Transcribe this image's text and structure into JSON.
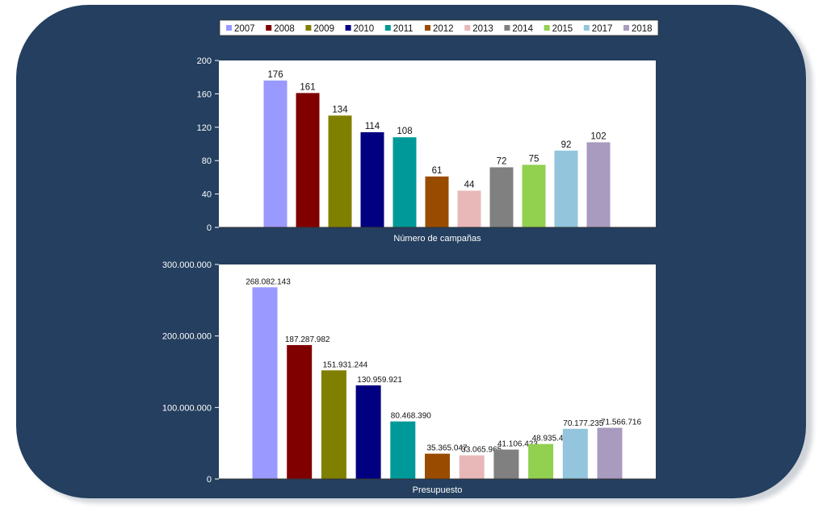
{
  "chart_data": [
    {
      "type": "bar",
      "title": "",
      "xlabel": "Número de campañas",
      "ylabel": "",
      "ylim": [
        0,
        200
      ],
      "yticks": [
        "0",
        "40",
        "80",
        "120",
        "160",
        "200"
      ],
      "grid": false,
      "legend": "top",
      "categories": [
        "2007",
        "2008",
        "2009",
        "2010",
        "2011",
        "2012",
        "2013",
        "2014",
        "2015",
        "2017",
        "2018"
      ],
      "values": [
        176,
        161,
        134,
        114,
        108,
        61,
        44,
        72,
        75,
        92,
        102
      ],
      "labels": [
        "176",
        "161",
        "134",
        "114",
        "108",
        "61",
        "44",
        "72",
        "75",
        "92",
        "102"
      ]
    },
    {
      "type": "bar",
      "title": "",
      "xlabel": "Presupuesto",
      "ylabel": "",
      "ylim": [
        0,
        300000000
      ],
      "yticks": [
        "0",
        "100.000.000",
        "200.000.000",
        "300.000.000"
      ],
      "grid": false,
      "legend": "top",
      "categories": [
        "2007",
        "2008",
        "2009",
        "2010",
        "2011",
        "2012",
        "2013",
        "2014",
        "2015",
        "2017",
        "2018"
      ],
      "values": [
        268082143,
        187287982,
        151931244,
        130959921,
        80468390,
        35365047,
        33065965,
        41106423,
        48935480,
        70177235,
        71566716
      ],
      "labels": [
        "268.082.143",
        "187.287.982",
        "151.931.244",
        "130.959.921",
        "80.468.390",
        "35.365.047",
        "33.065.965",
        "41.106.423",
        "48.935.480",
        "70.177.235",
        "71.566.716"
      ]
    }
  ],
  "legend": {
    "items": [
      "2007",
      "2008",
      "2009",
      "2010",
      "2011",
      "2012",
      "2013",
      "2014",
      "2015",
      "2017",
      "2018"
    ]
  },
  "colors": {
    "background_card": "#243f5f",
    "plot_background": "#ffffff",
    "series": [
      "#9999ff",
      "#800000",
      "#808000",
      "#000080",
      "#009999",
      "#994c00",
      "#e8b8b8",
      "#808080",
      "#92d050",
      "#93c5dd",
      "#a89bbf"
    ]
  }
}
